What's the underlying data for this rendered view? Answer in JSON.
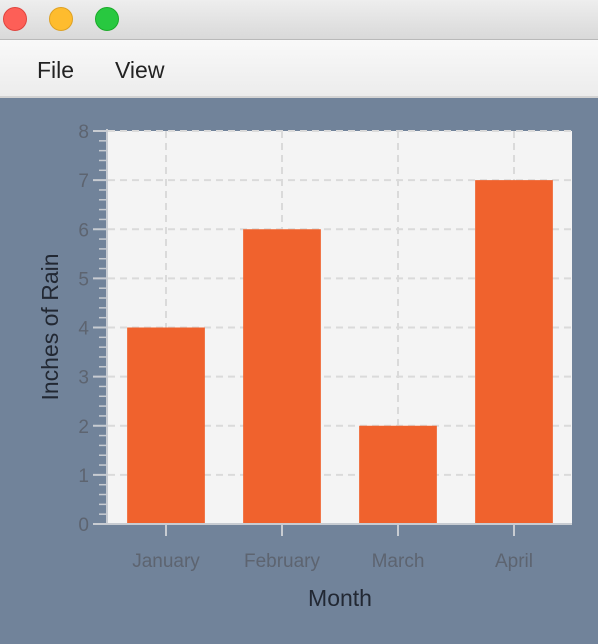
{
  "window": {
    "menu": [
      {
        "label": "File"
      },
      {
        "label": "View"
      }
    ]
  },
  "colors": {
    "background": "#71839a",
    "plot_background": "#f4f4f4",
    "bar": "#f0622d",
    "gridline": "#dadada"
  },
  "chart_data": {
    "type": "bar",
    "categories": [
      "January",
      "February",
      "March",
      "April"
    ],
    "values": [
      4,
      6,
      2,
      7
    ],
    "title": "",
    "xlabel": "Month",
    "ylabel": "Inches of Rain",
    "ylim": [
      0,
      8
    ],
    "ytick_step": 1,
    "grid": true,
    "legend": "none"
  }
}
